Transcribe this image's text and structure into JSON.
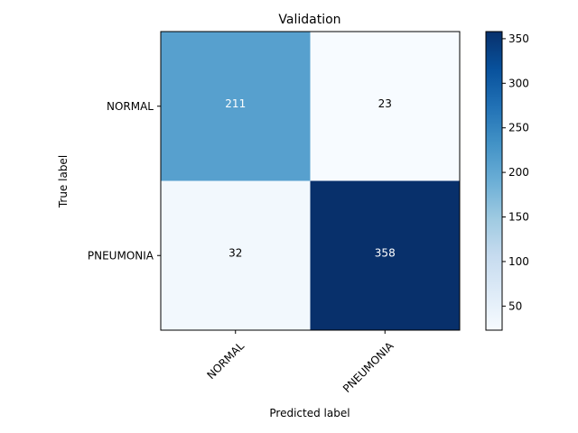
{
  "chart_data": {
    "type": "heatmap",
    "title": "Validation",
    "xlabel": "Predicted label",
    "ylabel": "True label",
    "x_categories": [
      "NORMAL",
      "PNEUMONIA"
    ],
    "y_categories": [
      "NORMAL",
      "PNEUMONIA"
    ],
    "values": [
      [
        211,
        23
      ],
      [
        32,
        358
      ]
    ],
    "colormap": "Blues",
    "colorbar": {
      "min": 23,
      "max": 358,
      "ticks": [
        50,
        100,
        150,
        200,
        250,
        300,
        350
      ]
    },
    "grid": false,
    "x_tick_rotation_deg": 45,
    "text_colors": {
      "light_cell": "#000000",
      "dark_cell": "#ffffff"
    }
  }
}
